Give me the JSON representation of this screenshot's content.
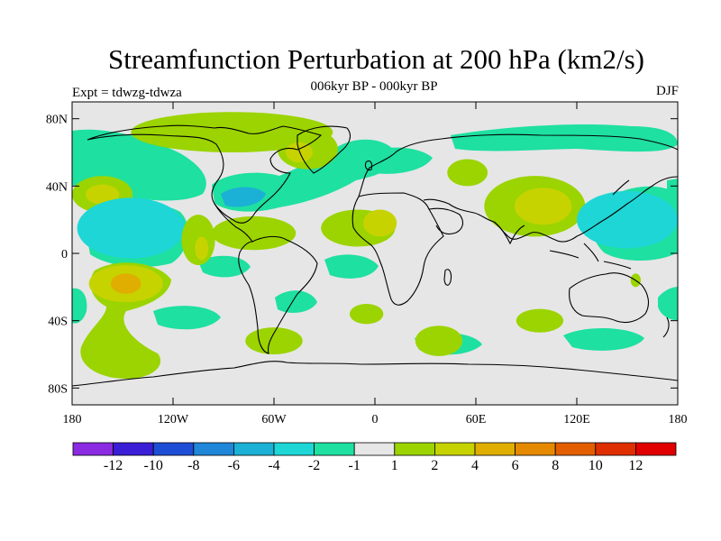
{
  "title": "Streamfunction Perturbation at 200 hPa (km2/s)",
  "subtitle": "006kyr BP - 000kyr BP",
  "experiment_label": "Expt = tdwzg-tdwza",
  "season_label": "DJF",
  "y_ticks": [
    {
      "label": "80N",
      "lat": 80
    },
    {
      "label": "40N",
      "lat": 40
    },
    {
      "label": "0",
      "lat": 0
    },
    {
      "label": "40S",
      "lat": -40
    },
    {
      "label": "80S",
      "lat": -80
    }
  ],
  "x_ticks": [
    {
      "label": "180",
      "lon": -180
    },
    {
      "label": "120W",
      "lon": -120
    },
    {
      "label": "60W",
      "lon": -60
    },
    {
      "label": "0",
      "lon": 0
    },
    {
      "label": "60E",
      "lon": 60
    },
    {
      "label": "120E",
      "lon": 120
    },
    {
      "label": "180",
      "lon": 180
    }
  ],
  "colorbar": {
    "colors": [
      "#8a2be2",
      "#3a1fd6",
      "#1f4ed6",
      "#1f86d8",
      "#1bb0d6",
      "#1ed6d6",
      "#1ee0a0",
      "#e6e6e6",
      "#9bd400",
      "#c6d300",
      "#dfae00",
      "#e58a00",
      "#e25e00",
      "#df2f00",
      "#e00000"
    ],
    "labels": [
      "-12",
      "-10",
      "-8",
      "-6",
      "-4",
      "-2",
      "-1",
      "1",
      "2",
      "4",
      "6",
      "8",
      "10",
      "12"
    ]
  },
  "blobs": [
    {
      "lon": -85,
      "lat": 72,
      "rx": 60,
      "ry": 12,
      "color": "#9bd400"
    },
    {
      "lon": -40,
      "lat": 62,
      "rx": 18,
      "ry": 12,
      "color": "#9bd400"
    },
    {
      "lon": -45,
      "lat": 60,
      "rx": 8,
      "ry": 6,
      "color": "#c6d300"
    },
    {
      "lon": -162,
      "lat": 35,
      "rx": 18,
      "ry": 11,
      "color": "#9bd400"
    },
    {
      "lon": -162,
      "lat": 35,
      "rx": 10,
      "ry": 6,
      "color": "#c6d300"
    },
    {
      "lon": -145,
      "lat": 15,
      "rx": 32,
      "ry": 18,
      "color": "#1ed6d6"
    },
    {
      "lon": -105,
      "lat": 8,
      "rx": 10,
      "ry": 15,
      "color": "#9bd400"
    },
    {
      "lon": -103,
      "lat": 3,
      "rx": 4,
      "ry": 7,
      "color": "#c6d300"
    },
    {
      "lon": -72,
      "lat": 12,
      "rx": 25,
      "ry": 10,
      "color": "#9bd400"
    },
    {
      "lon": -10,
      "lat": 15,
      "rx": 22,
      "ry": 11,
      "color": "#9bd400"
    },
    {
      "lon": 3,
      "lat": 18,
      "rx": 10,
      "ry": 8,
      "color": "#c6d300"
    },
    {
      "lon": 55,
      "lat": 48,
      "rx": 12,
      "ry": 8,
      "color": "#9bd400"
    },
    {
      "lon": 95,
      "lat": 28,
      "rx": 30,
      "ry": 18,
      "color": "#9bd400"
    },
    {
      "lon": 100,
      "lat": 28,
      "rx": 17,
      "ry": 11,
      "color": "#c6d300"
    },
    {
      "lon": 150,
      "lat": 20,
      "rx": 30,
      "ry": 17,
      "color": "#1ed6d6"
    },
    {
      "lon": -148,
      "lat": -18,
      "rx": 22,
      "ry": 11,
      "color": "#c6d300"
    },
    {
      "lon": -148,
      "lat": -18,
      "rx": 9,
      "ry": 6,
      "color": "#dfae00"
    },
    {
      "lon": -60,
      "lat": -52,
      "rx": 17,
      "ry": 8,
      "color": "#9bd400"
    },
    {
      "lon": -5,
      "lat": -36,
      "rx": 10,
      "ry": 6,
      "color": "#9bd400"
    },
    {
      "lon": 38,
      "lat": -52,
      "rx": 14,
      "ry": 9,
      "color": "#9bd400"
    },
    {
      "lon": 98,
      "lat": -40,
      "rx": 14,
      "ry": 7,
      "color": "#9bd400"
    },
    {
      "lon": 155,
      "lat": -16,
      "rx": 3,
      "ry": 4,
      "color": "#9bd400"
    }
  ]
}
